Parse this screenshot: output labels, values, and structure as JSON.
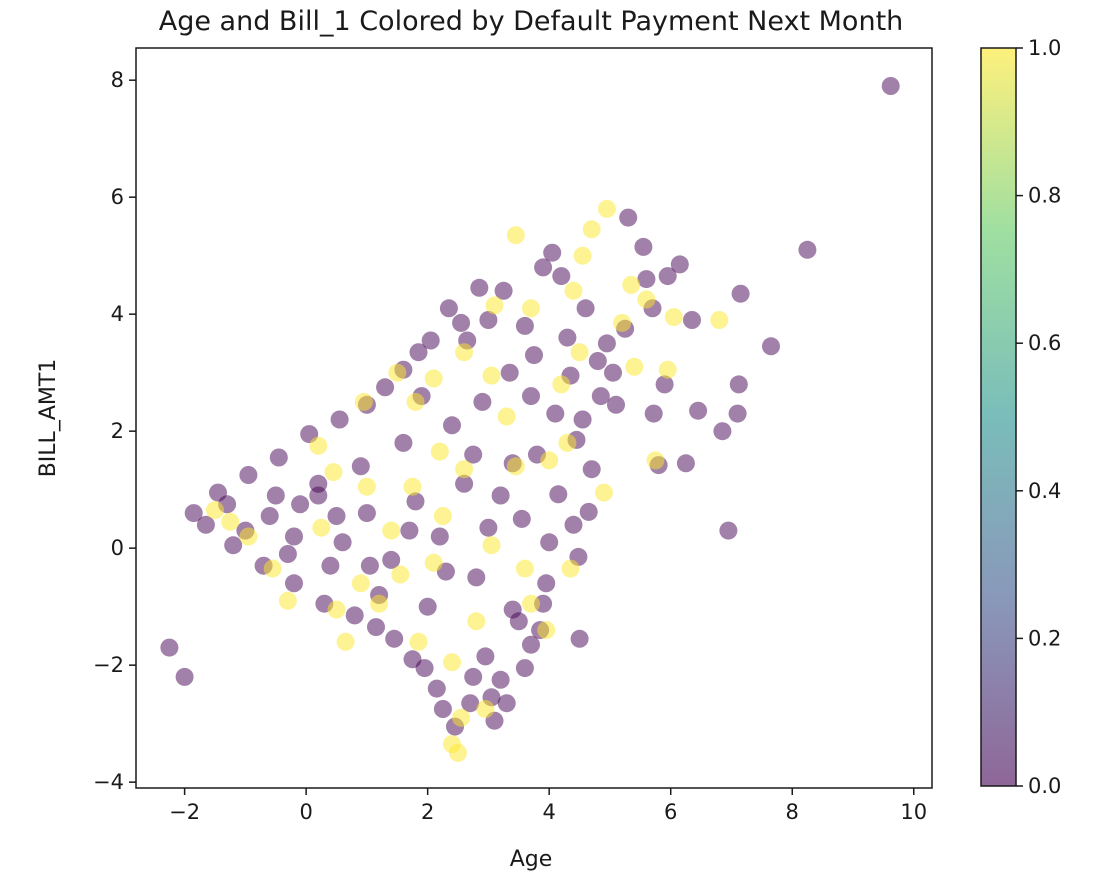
{
  "chart_data": {
    "type": "scatter",
    "title": "Age and Bill_1 Colored by Default Payment Next Month",
    "xlabel": "Age",
    "ylabel": "BILL_AMT1",
    "xlim": [
      -2.8,
      10.3
    ],
    "ylim": [
      -4.1,
      8.55
    ],
    "x_ticks": [
      -2,
      0,
      2,
      4,
      6,
      8,
      10
    ],
    "x_tick_labels": [
      "−2",
      "0",
      "2",
      "4",
      "6",
      "8",
      "10"
    ],
    "y_ticks": [
      -4,
      -2,
      0,
      2,
      4,
      6,
      8
    ],
    "y_tick_labels": [
      "−4",
      "−2",
      "0",
      "2",
      "4",
      "6",
      "8"
    ],
    "grid": false,
    "marker_alpha": 0.5,
    "colormap": "viridis",
    "colormap_stops": [
      "#440154",
      "#3b528b",
      "#21918c",
      "#5ec962",
      "#fde725"
    ],
    "color_value_label": "Default Payment Next Month",
    "colorbar": {
      "range": [
        0.0,
        1.0
      ],
      "ticks": [
        0.0,
        0.2,
        0.4,
        0.6,
        0.8,
        1.0
      ],
      "tick_labels": [
        "0.0",
        "0.2",
        "0.4",
        "0.6",
        "0.8",
        "1.0"
      ]
    },
    "series": [
      {
        "color_value": 0,
        "points": [
          [
            9.62,
            7.9
          ],
          [
            8.25,
            5.1
          ],
          [
            7.65,
            3.45
          ],
          [
            7.15,
            4.35
          ],
          [
            7.12,
            2.8
          ],
          [
            7.1,
            2.3
          ],
          [
            6.95,
            0.3
          ],
          [
            6.85,
            2.0
          ],
          [
            6.45,
            2.35
          ],
          [
            6.35,
            3.9
          ],
          [
            6.25,
            1.45
          ],
          [
            6.15,
            4.85
          ],
          [
            5.95,
            4.65
          ],
          [
            5.9,
            2.8
          ],
          [
            5.8,
            1.42
          ],
          [
            5.72,
            2.3
          ],
          [
            5.7,
            4.1
          ],
          [
            5.6,
            4.6
          ],
          [
            5.55,
            5.15
          ],
          [
            5.3,
            5.65
          ],
          [
            5.25,
            3.75
          ],
          [
            5.1,
            2.45
          ],
          [
            5.05,
            3.0
          ],
          [
            4.95,
            3.5
          ],
          [
            4.85,
            2.6
          ],
          [
            4.8,
            3.2
          ],
          [
            4.7,
            1.35
          ],
          [
            4.65,
            0.62
          ],
          [
            4.55,
            2.2
          ],
          [
            4.5,
            -1.55
          ],
          [
            4.48,
            -0.15
          ],
          [
            4.45,
            1.85
          ],
          [
            4.4,
            0.4
          ],
          [
            4.35,
            2.95
          ],
          [
            4.2,
            4.65
          ],
          [
            4.15,
            0.92
          ],
          [
            4.05,
            5.05
          ],
          [
            4.0,
            0.1
          ],
          [
            3.95,
            -0.6
          ],
          [
            3.9,
            -0.95
          ],
          [
            3.85,
            -1.4
          ],
          [
            3.8,
            1.6
          ],
          [
            3.75,
            3.3
          ],
          [
            3.7,
            -1.65
          ],
          [
            3.6,
            -2.05
          ],
          [
            3.55,
            0.5
          ],
          [
            3.5,
            -1.25
          ],
          [
            3.4,
            -1.05
          ],
          [
            3.3,
            -2.65
          ],
          [
            3.25,
            4.4
          ],
          [
            3.2,
            -2.25
          ],
          [
            3.1,
            -2.95
          ],
          [
            3.05,
            -2.55
          ],
          [
            3.0,
            3.9
          ],
          [
            2.95,
            -1.85
          ],
          [
            2.85,
            4.45
          ],
          [
            2.75,
            -2.2
          ],
          [
            2.7,
            -2.65
          ],
          [
            2.65,
            3.55
          ],
          [
            2.55,
            3.85
          ],
          [
            2.45,
            -3.05
          ],
          [
            2.35,
            4.1
          ],
          [
            2.25,
            -2.75
          ],
          [
            2.15,
            -2.4
          ],
          [
            2.05,
            3.55
          ],
          [
            1.95,
            -2.05
          ],
          [
            1.85,
            3.35
          ],
          [
            1.75,
            -1.9
          ],
          [
            1.6,
            3.05
          ],
          [
            1.45,
            -1.55
          ],
          [
            1.3,
            2.75
          ],
          [
            1.15,
            -1.35
          ],
          [
            1.0,
            2.45
          ],
          [
            0.8,
            -1.15
          ],
          [
            0.55,
            2.2
          ],
          [
            0.3,
            -0.95
          ],
          [
            0.05,
            1.95
          ],
          [
            -0.2,
            -0.6
          ],
          [
            -0.45,
            1.55
          ],
          [
            -0.7,
            -0.3
          ],
          [
            -0.95,
            1.25
          ],
          [
            -1.2,
            0.05
          ],
          [
            -1.45,
            0.95
          ],
          [
            -1.65,
            0.4
          ],
          [
            -1.85,
            0.6
          ],
          [
            -2.25,
            -1.7
          ],
          [
            -2.0,
            -2.2
          ],
          [
            -1.3,
            0.75
          ],
          [
            -1.0,
            0.3
          ],
          [
            -0.6,
            0.55
          ],
          [
            -0.2,
            0.2
          ],
          [
            0.2,
            0.9
          ],
          [
            0.6,
            0.1
          ],
          [
            1.0,
            0.6
          ],
          [
            1.4,
            -0.2
          ],
          [
            1.8,
            0.8
          ],
          [
            2.2,
            0.2
          ],
          [
            2.6,
            1.1
          ],
          [
            3.0,
            0.35
          ],
          [
            3.4,
            1.45
          ],
          [
            3.7,
            2.6
          ],
          [
            2.4,
            2.1
          ],
          [
            1.6,
            1.8
          ],
          [
            0.9,
            1.4
          ],
          [
            0.2,
            1.1
          ],
          [
            -0.5,
            0.9
          ],
          [
            1.2,
            -0.8
          ],
          [
            2.0,
            -1.0
          ],
          [
            2.8,
            -0.5
          ],
          [
            3.2,
            0.9
          ],
          [
            2.9,
            2.5
          ],
          [
            1.9,
            2.6
          ],
          [
            0.4,
            -0.3
          ],
          [
            -0.3,
            -0.1
          ],
          [
            3.6,
            3.8
          ],
          [
            4.1,
            2.3
          ],
          [
            4.3,
            3.6
          ],
          [
            4.6,
            4.1
          ],
          [
            3.9,
            4.8
          ],
          [
            3.35,
            3.0
          ],
          [
            2.75,
            1.6
          ],
          [
            2.3,
            -0.4
          ],
          [
            1.7,
            0.3
          ],
          [
            1.05,
            -0.3
          ],
          [
            0.5,
            0.55
          ],
          [
            -0.1,
            0.75
          ]
        ]
      },
      {
        "color_value": 1,
        "points": [
          [
            4.95,
            5.8
          ],
          [
            4.7,
            5.45
          ],
          [
            4.55,
            5.0
          ],
          [
            3.45,
            5.35
          ],
          [
            4.4,
            4.4
          ],
          [
            5.35,
            4.5
          ],
          [
            5.2,
            3.85
          ],
          [
            5.4,
            3.1
          ],
          [
            6.05,
            3.95
          ],
          [
            6.8,
            3.9
          ],
          [
            5.95,
            3.05
          ],
          [
            5.75,
            1.5
          ],
          [
            4.9,
            0.95
          ],
          [
            4.3,
            1.8
          ],
          [
            4.0,
            1.5
          ],
          [
            4.2,
            2.8
          ],
          [
            3.7,
            4.1
          ],
          [
            3.1,
            4.15
          ],
          [
            4.35,
            -0.35
          ],
          [
            3.95,
            -1.4
          ],
          [
            3.7,
            -0.95
          ],
          [
            2.55,
            -2.9
          ],
          [
            2.5,
            -3.5
          ],
          [
            2.4,
            -3.35
          ],
          [
            2.95,
            -2.75
          ],
          [
            2.6,
            3.35
          ],
          [
            1.8,
            2.5
          ],
          [
            2.2,
            1.65
          ],
          [
            2.6,
            1.35
          ],
          [
            1.5,
            3.0
          ],
          [
            0.95,
            2.5
          ],
          [
            0.2,
            1.75
          ],
          [
            -0.3,
            -0.9
          ],
          [
            0.25,
            0.35
          ],
          [
            0.9,
            -0.6
          ],
          [
            1.2,
            -0.95
          ],
          [
            1.55,
            -0.45
          ],
          [
            2.25,
            0.55
          ],
          [
            3.05,
            2.95
          ],
          [
            3.45,
            1.4
          ],
          [
            1.0,
            1.05
          ],
          [
            -0.55,
            -0.35
          ],
          [
            -1.5,
            0.65
          ],
          [
            -1.25,
            0.45
          ],
          [
            0.5,
            -1.05
          ],
          [
            1.85,
            -1.6
          ],
          [
            3.05,
            0.05
          ],
          [
            2.8,
            -1.25
          ],
          [
            1.75,
            1.05
          ],
          [
            0.45,
            1.3
          ],
          [
            -0.95,
            0.2
          ],
          [
            2.1,
            2.9
          ],
          [
            3.3,
            2.25
          ],
          [
            4.5,
            3.35
          ],
          [
            5.6,
            4.25
          ],
          [
            1.4,
            0.3
          ],
          [
            2.4,
            -1.95
          ],
          [
            0.65,
            -1.6
          ],
          [
            3.6,
            -0.35
          ],
          [
            2.1,
            -0.25
          ]
        ]
      }
    ]
  }
}
